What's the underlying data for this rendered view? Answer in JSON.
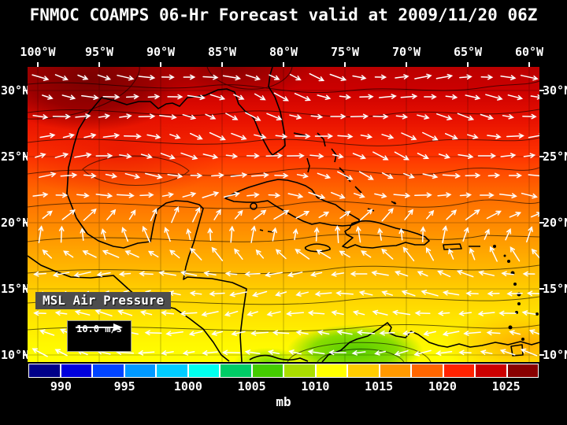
{
  "title": "FNMOC COAMPS 06-Hr Forecast valid at 2009/11/20 06Z",
  "map": {
    "lon_labels": [
      "100°W",
      "95°W",
      "90°W",
      "85°W",
      "80°W",
      "75°W",
      "70°W",
      "65°W",
      "60°W"
    ],
    "lat_labels": [
      "30°N",
      "25°N",
      "20°N",
      "15°N",
      "10°N"
    ],
    "field_label": "MSL Air Pressure",
    "wind_scale_label": "10.0 m/s"
  },
  "colorbar": {
    "units": "mb",
    "tick_labels": [
      "990",
      "995",
      "1000",
      "1005",
      "1010",
      "1015",
      "1020",
      "1025"
    ],
    "colors": [
      "#000088",
      "#0000dd",
      "#0044ff",
      "#0099ff",
      "#00ccff",
      "#00ffee",
      "#00cc66",
      "#44cc00",
      "#aadd00",
      "#ffff00",
      "#ffcc00",
      "#ff9900",
      "#ff6600",
      "#ff2200",
      "#cc0000",
      "#880000"
    ]
  },
  "chart_data": {
    "type": "heatmap",
    "title": "FNMOC COAMPS 06-Hr Forecast valid at 2009/11/20 06Z",
    "model": "FNMOC COAMPS",
    "forecast_hour": "06-Hr",
    "valid_time": "2009/11/20 06Z",
    "variable": "MSL Air Pressure",
    "units": "mb",
    "x_ticks": [
      "100°W",
      "95°W",
      "90°W",
      "85°W",
      "80°W",
      "75°W",
      "70°W",
      "65°W",
      "60°W"
    ],
    "y_ticks": [
      "30°N",
      "25°N",
      "20°N",
      "15°N",
      "10°N"
    ],
    "colorbar": {
      "tick_labels": [
        990,
        995,
        1000,
        1005,
        1010,
        1015,
        1020,
        1025
      ],
      "range_mb": [
        987.5,
        1027.5
      ],
      "step_mb": 2.5
    },
    "overlay": "surface wind vectors (white arrows)",
    "wind_reference_m_s": 10.0,
    "estimated_field": [
      {
        "lat": "30°N",
        "approx_mb": 1022
      },
      {
        "lat": "25°N",
        "approx_mb": 1019
      },
      {
        "lat": "20°N",
        "approx_mb": 1016
      },
      {
        "lat": "15°N",
        "approx_mb": 1012
      },
      {
        "lat": "10°N",
        "approx_mb": 1008
      }
    ],
    "notes": "High pressure (~1024 mb, dark red) over northern Gulf of Mexico / SE US; pressure decreases southward to ~1006 mb (green) over the SW Caribbean near 12N 75W; grid lines every 5 degrees"
  }
}
